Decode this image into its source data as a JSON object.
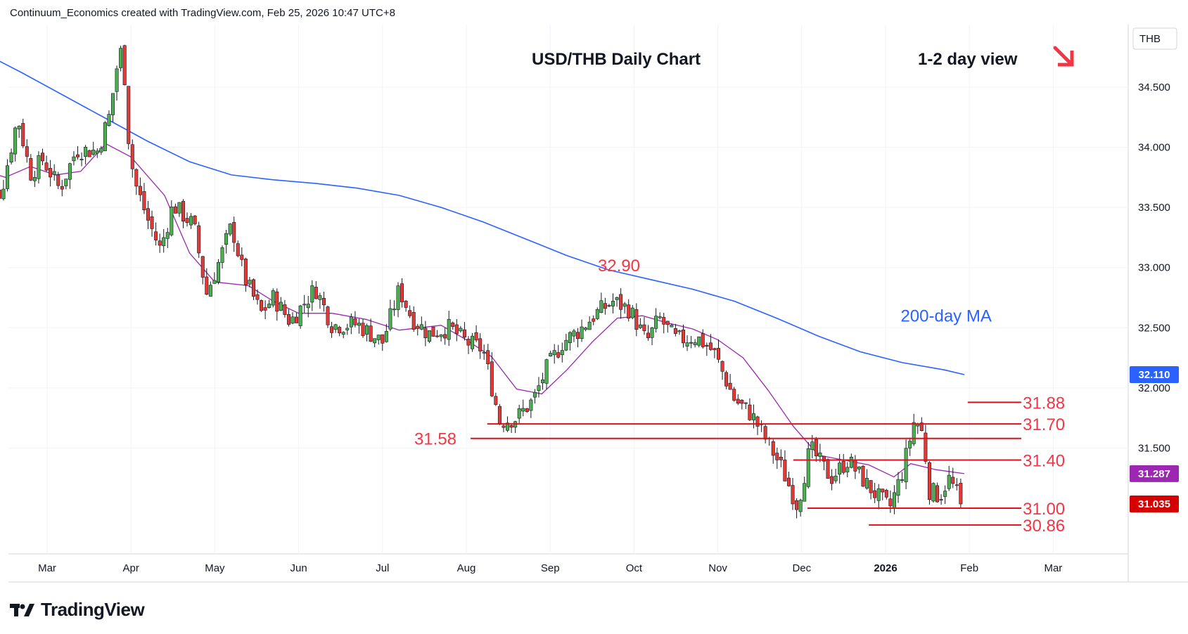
{
  "header": {
    "credit": "Continuum_Economics created with TradingView.com, Feb 25, 2026 10:47 UTC+8"
  },
  "brand": {
    "name": "TradingView",
    "icon": "tradingview-logo-icon"
  },
  "colors": {
    "bull_body": "#4caf50",
    "bull_wick": "#131722",
    "bear_body": "#e53935",
    "ma200": "#2962ff",
    "ma20": "#9c27b0",
    "levels": "#e0101a",
    "annotation": "#f23645"
  },
  "chart_data": {
    "type": "candlestick",
    "title": "USD/THB Daily Chart",
    "subtitle": "1-2 day view",
    "view_icon": "down-right-arrow-icon",
    "currency_label": "THB",
    "ylim": [
      30.62,
      35.02
    ],
    "y_ticks": [
      31.5,
      32.0,
      32.5,
      33.0,
      33.5,
      34.0,
      34.5
    ],
    "y_tick_labels": [
      "31.500",
      "32.000",
      "32.500",
      "33.000",
      "33.500",
      "34.000",
      "34.500"
    ],
    "x_labels": [
      "Mar",
      "Apr",
      "May",
      "Jun",
      "Jul",
      "Aug",
      "Sep",
      "Oct",
      "Nov",
      "Dec",
      "2026",
      "Feb",
      "Mar"
    ],
    "price_badges": [
      {
        "label": "32.110",
        "value": 32.11,
        "color": "#2962ff"
      },
      {
        "label": "31.287",
        "value": 31.287,
        "color": "#9c27b0"
      },
      {
        "label": "31.035",
        "value": 31.035,
        "color": "#d50000"
      }
    ],
    "levels": [
      {
        "label": "31.88",
        "value": 31.88,
        "from_month": 11.78,
        "to_month": 12.42,
        "label_side": "right"
      },
      {
        "label": "31.70",
        "value": 31.7,
        "from_month": 6.05,
        "to_month": 12.42,
        "label_side": "right"
      },
      {
        "label": "31.58",
        "value": 31.58,
        "from_month": 5.85,
        "to_month": 12.42,
        "label_side": "left"
      },
      {
        "label": "31.40",
        "value": 31.4,
        "from_month": 9.7,
        "to_month": 12.42,
        "label_side": "right"
      },
      {
        "label": "31.00",
        "value": 31.0,
        "from_month": 9.87,
        "to_month": 12.42,
        "label_side": "right"
      },
      {
        "label": "30.86",
        "value": 30.86,
        "from_month": 10.6,
        "to_month": 12.42,
        "label_side": "right"
      }
    ],
    "peak_annotation": {
      "label": "32.90",
      "value": 32.9,
      "month": 7.62
    },
    "ma_label": {
      "text": "200-day MA",
      "month": 10.98,
      "value": 32.55
    },
    "ma200_path": [
      [
        0.0,
        34.8
      ],
      [
        0.5,
        34.62
      ],
      [
        1.0,
        34.43
      ],
      [
        1.5,
        34.24
      ],
      [
        2.0,
        34.05
      ],
      [
        2.5,
        33.88
      ],
      [
        3.0,
        33.77
      ],
      [
        3.5,
        33.73
      ],
      [
        4.0,
        33.7
      ],
      [
        4.5,
        33.66
      ],
      [
        5.0,
        33.6
      ],
      [
        5.5,
        33.5
      ],
      [
        6.0,
        33.38
      ],
      [
        6.5,
        33.24
      ],
      [
        7.0,
        33.1
      ],
      [
        7.5,
        32.98
      ],
      [
        8.0,
        32.9
      ],
      [
        8.5,
        32.82
      ],
      [
        9.0,
        32.72
      ],
      [
        9.5,
        32.58
      ],
      [
        10.0,
        32.43
      ],
      [
        10.5,
        32.3
      ],
      [
        11.0,
        32.21
      ],
      [
        11.5,
        32.15
      ],
      [
        11.74,
        32.11
      ]
    ],
    "ma20_path": [
      [
        0.0,
        33.82
      ],
      [
        0.3,
        33.75
      ],
      [
        0.6,
        33.84
      ],
      [
        0.9,
        33.77
      ],
      [
        1.2,
        33.8
      ],
      [
        1.5,
        34.03
      ],
      [
        1.8,
        33.92
      ],
      [
        2.2,
        33.6
      ],
      [
        2.5,
        33.12
      ],
      [
        2.8,
        32.88
      ],
      [
        3.2,
        32.85
      ],
      [
        3.5,
        32.72
      ],
      [
        3.8,
        32.62
      ],
      [
        4.2,
        32.62
      ],
      [
        4.6,
        32.57
      ],
      [
        5.0,
        32.48
      ],
      [
        5.5,
        32.52
      ],
      [
        5.8,
        32.4
      ],
      [
        6.1,
        32.26
      ],
      [
        6.4,
        31.99
      ],
      [
        6.7,
        31.95
      ],
      [
        7.0,
        32.15
      ],
      [
        7.3,
        32.38
      ],
      [
        7.6,
        32.58
      ],
      [
        7.9,
        32.6
      ],
      [
        8.2,
        32.54
      ],
      [
        8.5,
        32.49
      ],
      [
        8.8,
        32.4
      ],
      [
        9.1,
        32.25
      ],
      [
        9.4,
        31.98
      ],
      [
        9.7,
        31.68
      ],
      [
        10.0,
        31.44
      ],
      [
        10.3,
        31.4
      ],
      [
        10.6,
        31.36
      ],
      [
        10.9,
        31.26
      ],
      [
        11.1,
        31.37
      ],
      [
        11.4,
        31.32
      ],
      [
        11.74,
        31.287
      ]
    ],
    "series": [
      {
        "name": "USD/THB",
        "anchor": [
          [
            0.0,
            33.72
          ],
          [
            0.25,
            33.62
          ],
          [
            0.45,
            34.25
          ],
          [
            0.6,
            33.78
          ],
          [
            0.75,
            33.9
          ],
          [
            0.95,
            33.65
          ],
          [
            1.15,
            33.98
          ],
          [
            1.4,
            33.97
          ],
          [
            1.55,
            34.28
          ],
          [
            1.62,
            34.63
          ],
          [
            1.7,
            34.85
          ],
          [
            1.78,
            33.98
          ],
          [
            1.85,
            33.7
          ],
          [
            2.0,
            33.4
          ],
          [
            2.15,
            33.15
          ],
          [
            2.3,
            33.52
          ],
          [
            2.55,
            33.35
          ],
          [
            2.7,
            32.78
          ],
          [
            2.85,
            33.05
          ],
          [
            3.0,
            33.35
          ],
          [
            3.15,
            32.92
          ],
          [
            3.35,
            32.62
          ],
          [
            3.5,
            32.75
          ],
          [
            3.7,
            32.55
          ],
          [
            4.0,
            32.83
          ],
          [
            4.2,
            32.52
          ],
          [
            4.5,
            32.53
          ],
          [
            4.8,
            32.38
          ],
          [
            5.0,
            32.82
          ],
          [
            5.15,
            32.58
          ],
          [
            5.35,
            32.45
          ],
          [
            5.6,
            32.5
          ],
          [
            5.8,
            32.38
          ],
          [
            6.0,
            32.32
          ],
          [
            6.2,
            31.72
          ],
          [
            6.4,
            31.75
          ],
          [
            6.6,
            31.9
          ],
          [
            6.75,
            32.15
          ],
          [
            6.95,
            32.38
          ],
          [
            7.15,
            32.48
          ],
          [
            7.35,
            32.62
          ],
          [
            7.55,
            32.72
          ],
          [
            7.75,
            32.65
          ],
          [
            7.95,
            32.38
          ],
          [
            8.1,
            32.58
          ],
          [
            8.3,
            32.4
          ],
          [
            8.55,
            32.42
          ],
          [
            8.75,
            32.3
          ],
          [
            9.0,
            31.9
          ],
          [
            9.2,
            31.78
          ],
          [
            9.35,
            31.6
          ],
          [
            9.55,
            31.35
          ],
          [
            9.75,
            31.02
          ],
          [
            9.9,
            31.5
          ],
          [
            10.15,
            31.25
          ],
          [
            10.35,
            31.4
          ],
          [
            10.55,
            31.22
          ],
          [
            10.7,
            31.1
          ],
          [
            10.85,
            31.0
          ],
          [
            11.0,
            31.3
          ],
          [
            11.15,
            31.75
          ],
          [
            11.25,
            31.6
          ],
          [
            11.32,
            31.15
          ],
          [
            11.45,
            31.1
          ],
          [
            11.55,
            31.25
          ],
          [
            11.65,
            31.12
          ],
          [
            11.74,
            31.035
          ]
        ],
        "last": 31.035
      }
    ]
  }
}
